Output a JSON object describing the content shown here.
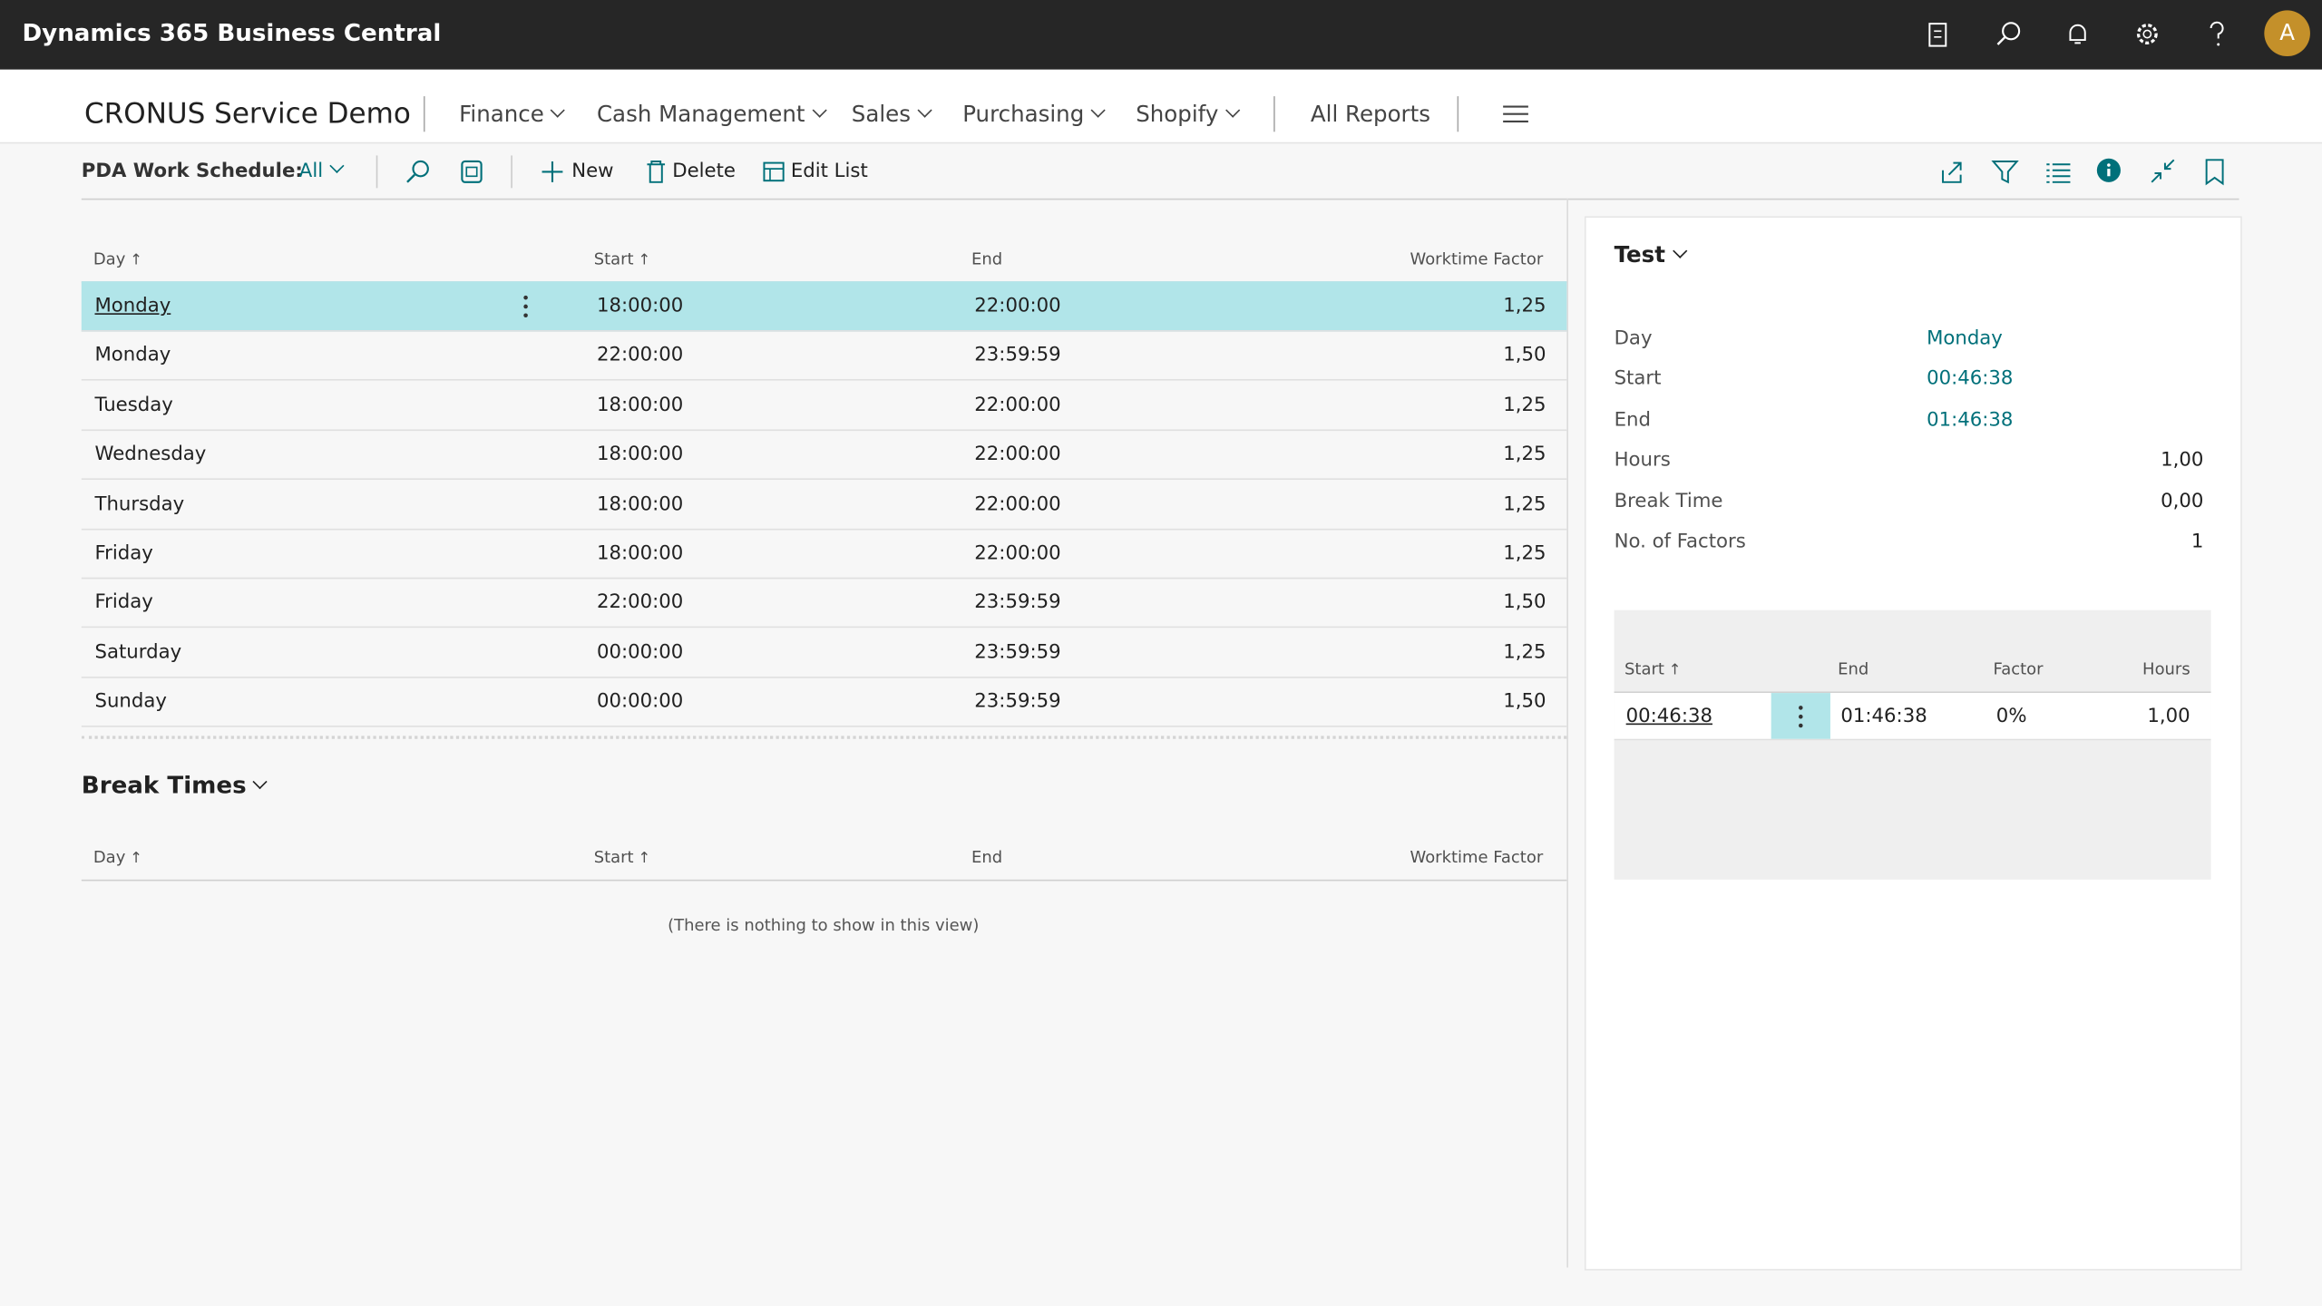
{
  "app_bar": {
    "title": "Dynamics 365 Business Central",
    "avatar": "A"
  },
  "nav": {
    "company": "CRONUS Service Demo",
    "items": [
      "Finance",
      "Cash Management",
      "Sales",
      "Purchasing",
      "Shopify"
    ],
    "all_reports": "All Reports"
  },
  "toolbar": {
    "page": "PDA Work Schedule:",
    "filter": "All",
    "actions": [
      "New",
      "Delete",
      "Edit List"
    ]
  },
  "schedule": {
    "columns": [
      "Day",
      "Start",
      "End",
      "Worktime Factor"
    ],
    "rows": [
      [
        "Monday",
        "18:00:00",
        "22:00:00",
        "1,25"
      ],
      [
        "Monday",
        "22:00:00",
        "23:59:59",
        "1,50"
      ],
      [
        "Tuesday",
        "18:00:00",
        "22:00:00",
        "1,25"
      ],
      [
        "Wednesday",
        "18:00:00",
        "22:00:00",
        "1,25"
      ],
      [
        "Thursday",
        "18:00:00",
        "22:00:00",
        "1,25"
      ],
      [
        "Friday",
        "18:00:00",
        "22:00:00",
        "1,25"
      ],
      [
        "Friday",
        "22:00:00",
        "23:59:59",
        "1,50"
      ],
      [
        "Saturday",
        "00:00:00",
        "23:59:59",
        "1,25"
      ],
      [
        "Sunday",
        "00:00:00",
        "23:59:59",
        "1,50"
      ]
    ]
  },
  "break_times": {
    "title": "Break Times",
    "columns": [
      "Day",
      "Start",
      "End",
      "Worktime Factor"
    ],
    "empty": "(There is nothing to show in this view)"
  },
  "factbox": {
    "title": "Test",
    "fields": [
      {
        "label": "Day",
        "value": "Monday"
      },
      {
        "label": "Start",
        "value": "00:46:38"
      },
      {
        "label": "End",
        "value": "01:46:38"
      },
      {
        "label": "Hours",
        "value": "1,00"
      },
      {
        "label": "Break Time",
        "value": "0,00"
      },
      {
        "label": "No. of Factors",
        "value": "1"
      }
    ],
    "table": {
      "columns": [
        "Start",
        "End",
        "Factor",
        "Hours"
      ],
      "rows": [
        [
          "00:46:38",
          "01:46:38",
          "0%",
          "1,00"
        ]
      ]
    }
  }
}
